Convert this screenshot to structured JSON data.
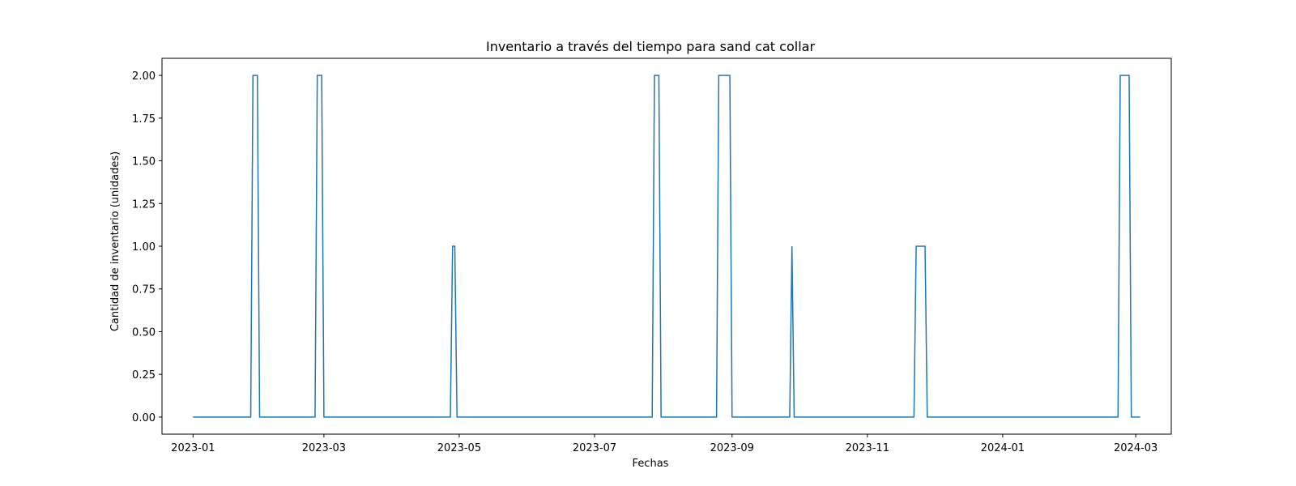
{
  "chart_data": {
    "type": "line",
    "title": "Inventario a través del tiempo para sand cat collar",
    "xlabel": "Fechas",
    "ylabel": "Cantidad de inventario (unidades)",
    "x_axis_type": "date",
    "xlim": [
      "2022-12-18",
      "2024-03-17"
    ],
    "ylim": [
      -0.1,
      2.1
    ],
    "x_ticks": [
      "2023-01",
      "2023-03",
      "2023-05",
      "2023-07",
      "2023-09",
      "2023-11",
      "2024-01",
      "2024-03"
    ],
    "y_ticks": [
      "0.00",
      "0.25",
      "0.50",
      "0.75",
      "1.00",
      "1.25",
      "1.50",
      "1.75",
      "2.00"
    ],
    "grid": false,
    "line_color": "#1f77b4",
    "series": [
      {
        "x": [
          "2023-01-01",
          "2023-01-27",
          "2023-01-28",
          "2023-01-30",
          "2023-01-31",
          "2023-02-25",
          "2023-02-26",
          "2023-02-28",
          "2023-03-01",
          "2023-04-27",
          "2023-04-28",
          "2023-04-29",
          "2023-04-30",
          "2023-07-27",
          "2023-07-28",
          "2023-07-30",
          "2023-07-31",
          "2023-08-25",
          "2023-08-26",
          "2023-08-31",
          "2023-09-01",
          "2023-09-27",
          "2023-09-28",
          "2023-09-29",
          "2023-11-22",
          "2023-11-23",
          "2023-11-27",
          "2023-11-28",
          "2024-02-22",
          "2024-02-23",
          "2024-02-27",
          "2024-02-28",
          "2024-03-03"
        ],
        "values": [
          0,
          0,
          2,
          2,
          0,
          0,
          2,
          2,
          0,
          0,
          1,
          1,
          0,
          0,
          2,
          2,
          0,
          0,
          2,
          2,
          0,
          0,
          1,
          0,
          0,
          1,
          1,
          0,
          0,
          2,
          2,
          0,
          0
        ]
      }
    ]
  }
}
